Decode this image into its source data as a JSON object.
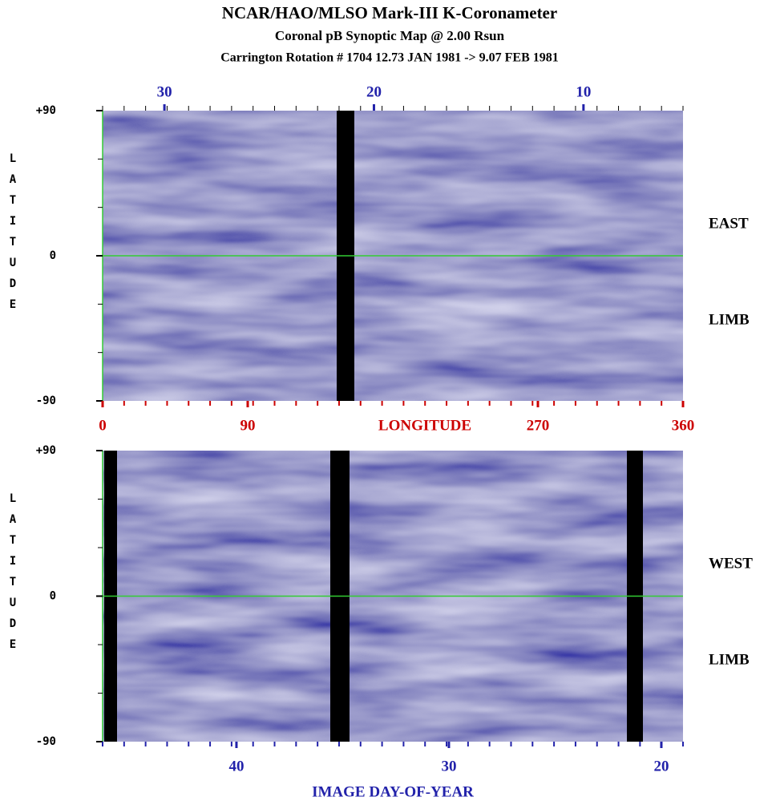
{
  "title": "NCAR/HAO/MLSO Mark-III K-Coronameter",
  "subtitle": "Coronal pB Synoptic Map @ 2.00 Rsun",
  "rotation": "Carrington Rotation # 1704   12.73 JAN 1981 -> 9.07 FEB 1981",
  "chart_data": [
    {
      "type": "heatmap",
      "ylabel": "LATITUDE",
      "annotations": [
        "EAST",
        "LIMB"
      ],
      "ylim": [
        -90,
        90
      ],
      "yticks": [
        {
          "value": 90,
          "label": "+90"
        },
        0,
        -90
      ],
      "x2lim": [
        32.95,
        5.25
      ],
      "x2ticks": [
        30,
        20,
        10
      ],
      "xlabel": "LONGITUDE",
      "xlim": [
        0,
        360
      ],
      "xticks": [
        0,
        90,
        270,
        360
      ]
    },
    {
      "type": "heatmap",
      "ylabel": "LATITUDE",
      "annotations": [
        "WEST",
        "LIMB"
      ],
      "ylim": [
        -90,
        90
      ],
      "yticks": [
        {
          "value": 90,
          "label": "+90"
        },
        0,
        -90
      ],
      "xlabel": "IMAGE DAY-OF-YEAR",
      "xlim": [
        46.3,
        18.98
      ],
      "xticks": [
        40,
        30,
        20
      ]
    }
  ]
}
